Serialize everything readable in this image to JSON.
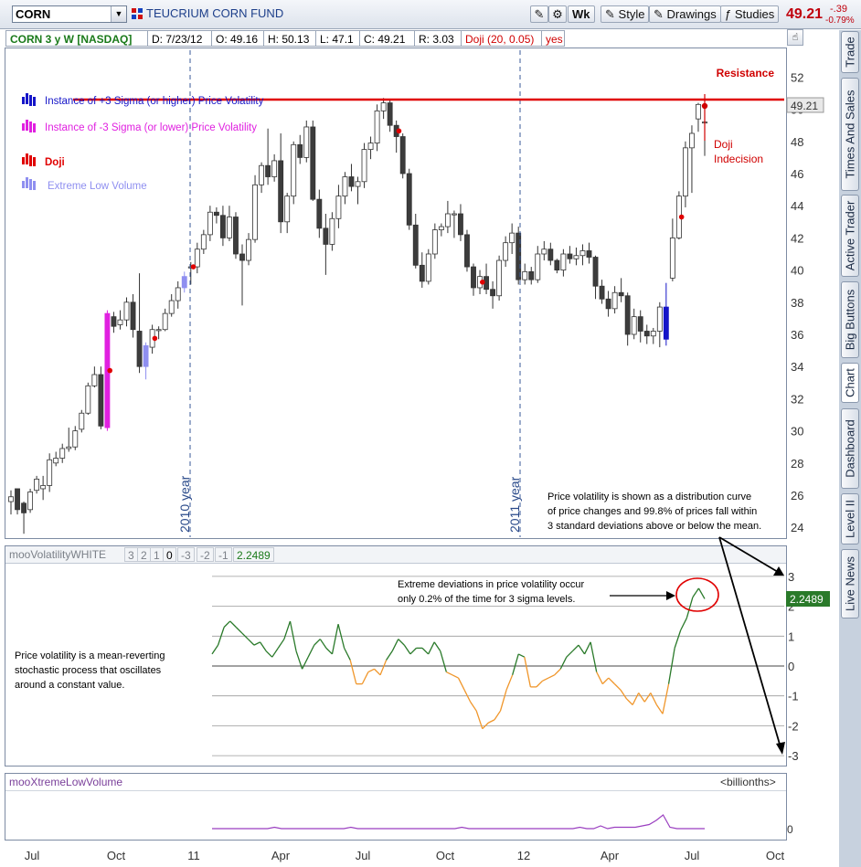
{
  "toolbar": {
    "symbol": "CORN",
    "fund_name": "TEUCRIUM CORN FUND",
    "period_button": "Wk",
    "style_button": "Style",
    "drawings_button": "Drawings",
    "studies_button": "Studies",
    "last_price": "49.21",
    "change_abs": "-.39",
    "change_pct": "-0.79%"
  },
  "info_bar": {
    "title": "CORN 3 y W [NASDAQ]",
    "date": "D: 7/23/12",
    "open": "O: 49.16",
    "high": "H: 50.13",
    "low": "L: 47.1",
    "close": "C: 49.21",
    "range": "R: 3.03",
    "study": "Doji (20, 0.05)",
    "study_value": "yes"
  },
  "colors": {
    "up_candle": "#ffffff",
    "down_candle": "#3c3c3c",
    "plus3_sigma": "#1515c8",
    "minus3_sigma": "#e020e0",
    "doji": "#e00000",
    "low_volume": "#8f8ff0",
    "resistance": "#e00000",
    "vol_above": "#2a7a2a",
    "vol_below": "#f0962a",
    "low_volume_line": "#9a3fc0",
    "price_label_bg": "#2a7a2a"
  },
  "price_chart": {
    "y_ticks": [
      "52",
      "50",
      "48",
      "46",
      "44",
      "42",
      "40",
      "38",
      "36",
      "34",
      "32",
      "30",
      "28",
      "26",
      "24"
    ],
    "current_price_label": "49.21",
    "resistance_label": "Resistance",
    "doji_callout_line1": "Doji",
    "doji_callout_line2": "Indecision",
    "year_2010": "2010 year",
    "year_2011": "2011 year",
    "legend": [
      {
        "label": "Instance of +3 Sigma (or higher) Price Volatility",
        "color": "#1515c8"
      },
      {
        "label": "Instance of -3 Sigma  (or lower) Price Volatility",
        "color": "#e020e0"
      },
      {
        "label": "Doji",
        "color": "#e00000"
      },
      {
        "label": "Extreme Low Volume",
        "color": "#8f8ff0"
      }
    ],
    "note_lines": [
      "Price volatility is shown as a distribution curve",
      "of price changes and 99.8% of prices fall within",
      "3 standard deviations above or below the mean."
    ]
  },
  "volatility_panel": {
    "name": "mooVolatilityWHITE",
    "params": [
      "3",
      "2",
      "1",
      "0",
      "-3",
      "-2",
      "-1"
    ],
    "value": "2.2489",
    "y_ticks": [
      "3",
      "2",
      "1",
      "0",
      "-1",
      "-2",
      "-3"
    ],
    "value_label": "2.2489",
    "note_lines": [
      "Price volatility is a mean-reverting",
      "stochastic process that oscillates",
      "around a constant value."
    ],
    "callout_lines": [
      "Extreme deviations in price volatility occur",
      "only 0.2% of the time for 3 sigma levels."
    ]
  },
  "volume_panel": {
    "name": "mooXtremeLowVolume",
    "units": "<billionths>",
    "y_tick": "0"
  },
  "x_axis": [
    "Jul",
    "Oct",
    "11",
    "Apr",
    "Jul",
    "Oct",
    "12",
    "Apr",
    "Jul",
    "Oct"
  ],
  "side_tabs": [
    "Trade",
    "Times And Sales",
    "Active Trader",
    "Big Buttons",
    "Chart",
    "Dashboard",
    "Level II",
    "Live News"
  ],
  "chart_data": [
    {
      "type": "candlestick",
      "title": "CORN 3 y W [NASDAQ]",
      "x_ticks": [
        "Jul",
        "Oct",
        "11",
        "Apr",
        "Jul",
        "Oct",
        "12",
        "Apr",
        "Jul",
        "Oct"
      ],
      "ylim": [
        23.5,
        53.5
      ],
      "resistance": 50.6,
      "candles": [
        {
          "o": 25.6,
          "h": 26.3,
          "l": 24.8,
          "c": 25.9
        },
        {
          "o": 26.4,
          "h": 26.4,
          "l": 24.8,
          "c": 25.1
        },
        {
          "o": 25.5,
          "h": 25.6,
          "l": 23.6,
          "c": 24.9
        },
        {
          "o": 25.1,
          "h": 26.4,
          "l": 24.9,
          "c": 26.2
        },
        {
          "o": 26.3,
          "h": 27.2,
          "l": 26.1,
          "c": 27.0
        },
        {
          "o": 26.4,
          "h": 27.2,
          "l": 25.7,
          "c": 26.6
        },
        {
          "o": 26.6,
          "h": 28.6,
          "l": 26.2,
          "c": 28.2
        },
        {
          "o": 28.0,
          "h": 28.7,
          "l": 27.8,
          "c": 28.3
        },
        {
          "o": 28.3,
          "h": 29.2,
          "l": 28.0,
          "c": 28.9
        },
        {
          "o": 28.9,
          "h": 30.2,
          "l": 28.7,
          "c": 29.0
        },
        {
          "o": 29.0,
          "h": 30.3,
          "l": 28.8,
          "c": 30.0
        },
        {
          "o": 30.1,
          "h": 31.3,
          "l": 29.9,
          "c": 31.1
        },
        {
          "o": 31.1,
          "h": 33.0,
          "l": 31.0,
          "c": 32.8
        },
        {
          "o": 32.8,
          "h": 34.0,
          "l": 32.7,
          "c": 33.5
        },
        {
          "o": 33.5,
          "h": 34.0,
          "l": 30.1,
          "c": 30.3
        },
        {
          "o": 30.2,
          "h": 37.5,
          "l": 30.0,
          "c": 37.3
        },
        {
          "o": 37.1,
          "h": 37.4,
          "l": 36.1,
          "c": 36.5
        },
        {
          "o": 36.6,
          "h": 37.5,
          "l": 36.3,
          "c": 36.9
        },
        {
          "o": 36.9,
          "h": 38.3,
          "l": 36.5,
          "c": 38.0
        },
        {
          "o": 38.0,
          "h": 38.5,
          "l": 35.8,
          "c": 36.3
        },
        {
          "o": 36.2,
          "h": 39.8,
          "l": 33.6,
          "c": 34.0
        },
        {
          "o": 34.0,
          "h": 35.5,
          "l": 33.2,
          "c": 35.3
        },
        {
          "o": 35.2,
          "h": 36.6,
          "l": 34.8,
          "c": 36.3
        },
        {
          "o": 36.3,
          "h": 36.5,
          "l": 35.7,
          "c": 36.3
        },
        {
          "o": 36.3,
          "h": 37.6,
          "l": 36.2,
          "c": 37.3
        },
        {
          "o": 37.3,
          "h": 38.5,
          "l": 37.1,
          "c": 38.1
        },
        {
          "o": 38.1,
          "h": 39.3,
          "l": 37.6,
          "c": 38.9
        },
        {
          "o": 38.9,
          "h": 39.9,
          "l": 38.6,
          "c": 39.6
        },
        {
          "o": 40.2,
          "h": 40.5,
          "l": 39.1,
          "c": 40.2
        },
        {
          "o": 40.2,
          "h": 41.7,
          "l": 39.8,
          "c": 41.3
        },
        {
          "o": 41.3,
          "h": 42.5,
          "l": 41.0,
          "c": 42.2
        },
        {
          "o": 42.2,
          "h": 44.0,
          "l": 41.8,
          "c": 43.6
        },
        {
          "o": 43.6,
          "h": 43.9,
          "l": 42.9,
          "c": 43.4
        },
        {
          "o": 43.4,
          "h": 44.0,
          "l": 41.5,
          "c": 42.0
        },
        {
          "o": 42.0,
          "h": 44.0,
          "l": 41.8,
          "c": 43.3
        },
        {
          "o": 43.3,
          "h": 43.6,
          "l": 40.7,
          "c": 41.0
        },
        {
          "o": 41.0,
          "h": 41.6,
          "l": 37.8,
          "c": 40.6
        },
        {
          "o": 40.6,
          "h": 42.3,
          "l": 40.3,
          "c": 41.9
        },
        {
          "o": 41.9,
          "h": 45.9,
          "l": 41.7,
          "c": 45.3
        },
        {
          "o": 45.3,
          "h": 46.7,
          "l": 44.8,
          "c": 46.5
        },
        {
          "o": 46.5,
          "h": 48.8,
          "l": 45.3,
          "c": 45.8
        },
        {
          "o": 45.8,
          "h": 47.2,
          "l": 45.5,
          "c": 46.8
        },
        {
          "o": 46.8,
          "h": 48.5,
          "l": 42.3,
          "c": 43.0
        },
        {
          "o": 43.0,
          "h": 44.8,
          "l": 42.3,
          "c": 44.6
        },
        {
          "o": 44.6,
          "h": 48.0,
          "l": 44.1,
          "c": 47.8
        },
        {
          "o": 47.8,
          "h": 48.4,
          "l": 46.6,
          "c": 47.0
        },
        {
          "o": 47.0,
          "h": 49.3,
          "l": 46.7,
          "c": 48.9
        },
        {
          "o": 48.9,
          "h": 49.3,
          "l": 44.3,
          "c": 44.4
        },
        {
          "o": 44.4,
          "h": 45.0,
          "l": 42.0,
          "c": 42.6
        },
        {
          "o": 42.6,
          "h": 43.5,
          "l": 39.7,
          "c": 41.6
        },
        {
          "o": 41.6,
          "h": 43.6,
          "l": 41.2,
          "c": 43.2
        },
        {
          "o": 43.2,
          "h": 45.3,
          "l": 42.6,
          "c": 44.6
        },
        {
          "o": 44.6,
          "h": 46.1,
          "l": 44.1,
          "c": 45.8
        },
        {
          "o": 45.8,
          "h": 46.6,
          "l": 44.9,
          "c": 45.2
        },
        {
          "o": 45.2,
          "h": 45.8,
          "l": 44.1,
          "c": 45.5
        },
        {
          "o": 45.5,
          "h": 47.9,
          "l": 45.1,
          "c": 47.5
        },
        {
          "o": 47.5,
          "h": 48.3,
          "l": 46.9,
          "c": 47.9
        },
        {
          "o": 47.9,
          "h": 50.3,
          "l": 47.4,
          "c": 49.9
        },
        {
          "o": 49.9,
          "h": 50.7,
          "l": 49.4,
          "c": 50.4
        },
        {
          "o": 50.4,
          "h": 50.6,
          "l": 48.6,
          "c": 49.0
        },
        {
          "o": 49.0,
          "h": 49.3,
          "l": 47.3,
          "c": 48.3
        },
        {
          "o": 48.3,
          "h": 48.5,
          "l": 45.7,
          "c": 46.0
        },
        {
          "o": 46.0,
          "h": 46.3,
          "l": 42.5,
          "c": 42.8
        },
        {
          "o": 42.8,
          "h": 43.5,
          "l": 40.1,
          "c": 40.3
        },
        {
          "o": 40.3,
          "h": 41.1,
          "l": 38.9,
          "c": 39.3
        },
        {
          "o": 39.3,
          "h": 41.3,
          "l": 39.1,
          "c": 41.0
        },
        {
          "o": 41.0,
          "h": 42.9,
          "l": 40.7,
          "c": 42.5
        },
        {
          "o": 42.5,
          "h": 42.9,
          "l": 42.1,
          "c": 42.7
        },
        {
          "o": 42.7,
          "h": 44.3,
          "l": 42.3,
          "c": 43.5
        },
        {
          "o": 43.5,
          "h": 43.7,
          "l": 42.0,
          "c": 43.5
        },
        {
          "o": 43.5,
          "h": 44.1,
          "l": 41.8,
          "c": 42.2
        },
        {
          "o": 42.2,
          "h": 42.5,
          "l": 39.9,
          "c": 40.2
        },
        {
          "o": 40.2,
          "h": 40.4,
          "l": 38.4,
          "c": 38.9
        },
        {
          "o": 38.9,
          "h": 40.0,
          "l": 38.5,
          "c": 39.6
        },
        {
          "o": 39.6,
          "h": 40.4,
          "l": 38.5,
          "c": 38.8
        },
        {
          "o": 38.8,
          "h": 39.3,
          "l": 37.6,
          "c": 38.4
        },
        {
          "o": 38.4,
          "h": 40.9,
          "l": 38.1,
          "c": 40.6
        },
        {
          "o": 40.6,
          "h": 42.1,
          "l": 40.2,
          "c": 41.7
        },
        {
          "o": 41.7,
          "h": 42.9,
          "l": 41.0,
          "c": 42.3
        },
        {
          "o": 42.3,
          "h": 42.7,
          "l": 39.1,
          "c": 39.4
        },
        {
          "o": 39.4,
          "h": 40.4,
          "l": 39.1,
          "c": 39.9
        },
        {
          "o": 39.9,
          "h": 40.2,
          "l": 39.1,
          "c": 39.4
        },
        {
          "o": 39.4,
          "h": 41.5,
          "l": 39.2,
          "c": 41.0
        },
        {
          "o": 41.0,
          "h": 41.8,
          "l": 40.6,
          "c": 41.3
        },
        {
          "o": 41.3,
          "h": 41.7,
          "l": 40.3,
          "c": 40.6
        },
        {
          "o": 40.6,
          "h": 40.7,
          "l": 39.8,
          "c": 40.0
        },
        {
          "o": 40.0,
          "h": 41.3,
          "l": 39.6,
          "c": 41.0
        },
        {
          "o": 41.0,
          "h": 41.5,
          "l": 40.4,
          "c": 40.7
        },
        {
          "o": 40.7,
          "h": 41.4,
          "l": 40.3,
          "c": 40.9
        },
        {
          "o": 40.9,
          "h": 41.6,
          "l": 40.3,
          "c": 41.2
        },
        {
          "o": 41.2,
          "h": 41.7,
          "l": 40.4,
          "c": 40.8
        },
        {
          "o": 40.8,
          "h": 40.9,
          "l": 38.2,
          "c": 39.0
        },
        {
          "o": 39.0,
          "h": 39.4,
          "l": 37.9,
          "c": 38.2
        },
        {
          "o": 38.2,
          "h": 38.7,
          "l": 37.1,
          "c": 37.6
        },
        {
          "o": 37.6,
          "h": 39.0,
          "l": 37.3,
          "c": 38.6
        },
        {
          "o": 38.6,
          "h": 39.5,
          "l": 38.0,
          "c": 38.4
        },
        {
          "o": 38.4,
          "h": 38.6,
          "l": 35.3,
          "c": 36.0
        },
        {
          "o": 36.0,
          "h": 37.6,
          "l": 35.7,
          "c": 37.1
        },
        {
          "o": 37.1,
          "h": 37.5,
          "l": 35.5,
          "c": 36.2
        },
        {
          "o": 36.2,
          "h": 36.6,
          "l": 35.4,
          "c": 35.9
        },
        {
          "o": 35.9,
          "h": 36.4,
          "l": 35.4,
          "c": 36.2
        },
        {
          "o": 36.2,
          "h": 38.0,
          "l": 35.2,
          "c": 37.7
        },
        {
          "o": 37.7,
          "h": 39.2,
          "l": 35.3,
          "c": 35.7
        },
        {
          "o": 39.5,
          "h": 43.2,
          "l": 39.3,
          "c": 42.0
        },
        {
          "o": 42.0,
          "h": 44.9,
          "l": 41.9,
          "c": 44.6
        },
        {
          "o": 44.6,
          "h": 48.0,
          "l": 43.9,
          "c": 47.6
        },
        {
          "o": 47.6,
          "h": 49.0,
          "l": 44.8,
          "c": 48.5
        },
        {
          "o": 49.4,
          "h": 50.4,
          "l": 48.6,
          "c": 50.3
        },
        {
          "o": 49.16,
          "h": 50.13,
          "l": 47.1,
          "c": 49.21
        }
      ],
      "markers": {
        "plus3_sigma": [
          102
        ],
        "minus3_sigma": [
          15
        ],
        "doji": [
          15,
          22,
          28,
          60,
          73,
          104
        ],
        "extreme_low_volume": [
          21,
          27
        ]
      }
    },
    {
      "type": "line",
      "title": "mooVolatilityWHITE",
      "ylim": [
        -3,
        3
      ],
      "reference_lines": [
        3,
        2,
        1,
        0,
        -1,
        -2,
        -3
      ],
      "values": [
        0.4,
        0.7,
        1.3,
        1.5,
        1.3,
        1.1,
        0.9,
        0.7,
        0.8,
        0.5,
        0.3,
        0.6,
        0.9,
        1.5,
        0.5,
        -0.1,
        0.3,
        0.7,
        0.9,
        0.6,
        0.4,
        1.4,
        0.6,
        0.2,
        -0.6,
        -0.6,
        -0.2,
        -0.1,
        -0.3,
        0.2,
        0.5,
        0.9,
        0.7,
        0.4,
        0.6,
        0.6,
        0.4,
        0.8,
        0.5,
        -0.2,
        -0.3,
        -0.4,
        -0.8,
        -1.2,
        -1.5,
        -2.1,
        -1.9,
        -1.8,
        -1.5,
        -0.8,
        -0.3,
        0.4,
        0.3,
        -0.7,
        -0.7,
        -0.5,
        -0.4,
        -0.3,
        -0.1,
        0.3,
        0.5,
        0.7,
        0.4,
        0.8,
        -0.2,
        -0.6,
        -0.4,
        -0.6,
        -0.8,
        -1.1,
        -1.3,
        -0.9,
        -1.2,
        -0.9,
        -1.3,
        -1.6,
        -0.6,
        0.6,
        1.2,
        1.6,
        2.3,
        2.6,
        2.2489
      ]
    },
    {
      "type": "line",
      "title": "mooXtremeLowVolume",
      "ylabel": "<billionths>",
      "values": [
        0,
        0,
        0,
        0,
        0,
        0,
        0,
        0,
        0,
        0.1,
        0,
        0,
        0,
        0,
        0,
        0,
        0,
        0,
        0,
        0,
        0.1,
        0,
        0,
        0,
        0,
        0,
        0,
        0,
        0,
        0,
        0,
        0,
        0,
        0,
        0,
        0,
        0.1,
        0,
        0,
        0,
        0,
        0,
        0,
        0,
        0,
        0,
        0,
        0,
        0,
        0,
        0,
        0,
        0,
        0.1,
        0,
        0,
        0.2,
        0,
        0.1,
        0.1,
        0.1,
        0.1,
        0.2,
        0.3,
        0.6,
        1,
        0.1,
        0,
        0,
        0,
        0,
        0
      ]
    }
  ]
}
